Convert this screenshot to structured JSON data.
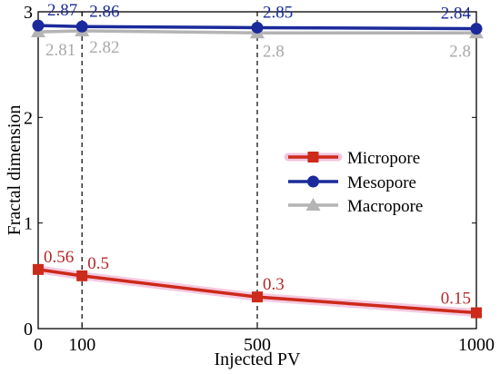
{
  "chart_data": {
    "type": "line",
    "xlabel": "Injected PV",
    "ylabel": "Fractal dimension",
    "x": [
      0,
      100,
      500,
      1000
    ],
    "x_tick_labels": [
      "0",
      "100",
      "500",
      "1000"
    ],
    "y_tick_labels": [
      "0",
      "1",
      "2",
      "3"
    ],
    "xlim": [
      0,
      1000
    ],
    "ylim": [
      0,
      3
    ],
    "reference_lines_x": [
      100,
      500
    ],
    "grid": false,
    "legend_position": "right-center",
    "series": [
      {
        "name": "Micropore",
        "values": [
          0.56,
          0.5,
          0.3,
          0.15
        ],
        "labels": [
          "0.56",
          "0.5",
          "0.3",
          "0.15"
        ],
        "color": "#cc2a1a",
        "label_color": "#b5272a",
        "marker": "square"
      },
      {
        "name": "Mesopore",
        "values": [
          2.87,
          2.86,
          2.85,
          2.84
        ],
        "labels": [
          "2.87",
          "2.86",
          "2.85",
          "2.84"
        ],
        "color": "#1a2a9a",
        "label_color": "#1a2a9a",
        "marker": "circle"
      },
      {
        "name": "Macropore",
        "values": [
          2.81,
          2.82,
          2.8,
          2.8
        ],
        "labels": [
          "2.81",
          "2.82",
          "2.8",
          "2.8"
        ],
        "color": "#b4b4b4",
        "label_color": "#a8a8a8",
        "marker": "triangle"
      }
    ]
  }
}
